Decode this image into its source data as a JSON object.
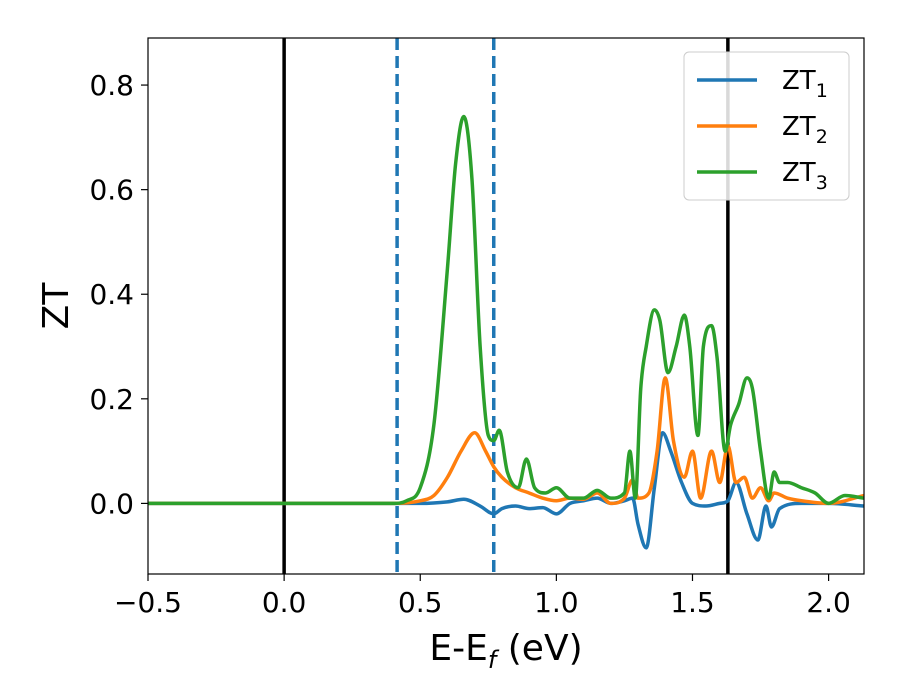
{
  "chart_data": {
    "type": "line",
    "title": "",
    "xlabel_main": "E-E",
    "xlabel_sub": "f",
    "xlabel_unit": " (eV)",
    "ylabel": "ZT",
    "xlim": [
      -0.5,
      2.13
    ],
    "ylim": [
      -0.135,
      0.89
    ],
    "xticks": [
      -0.5,
      0.0,
      0.5,
      1.0,
      1.5,
      2.0
    ],
    "xtick_labels": [
      "−0.5",
      "0.0",
      "0.5",
      "1.0",
      "1.5",
      "2.0"
    ],
    "yticks": [
      0.0,
      0.2,
      0.4,
      0.6,
      0.8
    ],
    "ytick_labels": [
      "0.0",
      "0.2",
      "0.4",
      "0.6",
      "0.8"
    ],
    "grid": false,
    "legend_position": "top-right",
    "vlines": [
      {
        "x": 0.0,
        "style": "solid",
        "color": "#000000"
      },
      {
        "x": 1.63,
        "style": "solid",
        "color": "#000000"
      },
      {
        "x": 0.415,
        "style": "dashed",
        "color": "#1f77b4"
      },
      {
        "x": 0.77,
        "style": "dashed",
        "color": "#1f77b4"
      }
    ],
    "series": [
      {
        "name": "ZT",
        "subscript": "1",
        "color": "#1f77b4",
        "x": [
          -0.5,
          0.4,
          0.5,
          0.6,
          0.66,
          0.72,
          0.77,
          0.8,
          0.85,
          0.9,
          0.95,
          1.0,
          1.05,
          1.1,
          1.15,
          1.2,
          1.25,
          1.28,
          1.3,
          1.33,
          1.36,
          1.39,
          1.42,
          1.46,
          1.5,
          1.55,
          1.6,
          1.63,
          1.66,
          1.7,
          1.74,
          1.77,
          1.79,
          1.82,
          1.9,
          2.0,
          2.13
        ],
        "y": [
          0.0,
          0.0,
          0.0,
          0.003,
          0.008,
          -0.005,
          -0.02,
          -0.01,
          -0.005,
          -0.01,
          -0.008,
          -0.02,
          0.0,
          0.005,
          0.01,
          0.0,
          0.005,
          0.01,
          -0.04,
          -0.085,
          0.03,
          0.135,
          0.1,
          0.04,
          0.0,
          -0.005,
          0.0,
          0.005,
          0.04,
          -0.02,
          -0.07,
          -0.005,
          -0.045,
          -0.01,
          0.0,
          0.0,
          -0.005
        ]
      },
      {
        "name": "ZT",
        "subscript": "2",
        "color": "#ff7f0e",
        "x": [
          -0.5,
          0.4,
          0.5,
          0.55,
          0.6,
          0.65,
          0.7,
          0.74,
          0.77,
          0.8,
          0.85,
          0.9,
          0.95,
          1.0,
          1.05,
          1.1,
          1.15,
          1.2,
          1.25,
          1.28,
          1.3,
          1.34,
          1.37,
          1.4,
          1.43,
          1.47,
          1.5,
          1.53,
          1.57,
          1.6,
          1.63,
          1.66,
          1.69,
          1.72,
          1.75,
          1.78,
          1.8,
          1.85,
          1.9,
          2.0,
          2.13
        ],
        "y": [
          0.0,
          0.0,
          0.005,
          0.015,
          0.05,
          0.1,
          0.135,
          0.1,
          0.07,
          0.05,
          0.03,
          0.02,
          0.01,
          0.005,
          0.01,
          0.008,
          0.02,
          0.0,
          0.01,
          0.045,
          0.01,
          0.02,
          0.1,
          0.24,
          0.12,
          0.05,
          0.1,
          0.01,
          0.1,
          0.04,
          0.11,
          0.04,
          0.05,
          0.01,
          0.03,
          0.005,
          0.02,
          0.01,
          0.005,
          0.0,
          0.015
        ]
      },
      {
        "name": "ZT",
        "subscript": "3",
        "color": "#2ca02c",
        "x": [
          -0.5,
          0.4,
          0.45,
          0.5,
          0.55,
          0.6,
          0.63,
          0.66,
          0.69,
          0.72,
          0.75,
          0.77,
          0.79,
          0.82,
          0.86,
          0.89,
          0.92,
          0.96,
          1.0,
          1.05,
          1.1,
          1.15,
          1.2,
          1.25,
          1.27,
          1.29,
          1.31,
          1.33,
          1.36,
          1.38,
          1.41,
          1.44,
          1.47,
          1.49,
          1.52,
          1.54,
          1.57,
          1.59,
          1.62,
          1.64,
          1.67,
          1.7,
          1.72,
          1.75,
          1.78,
          1.8,
          1.82,
          1.85,
          1.9,
          1.95,
          2.0,
          2.06,
          2.13
        ],
        "y": [
          0.0,
          0.0,
          0.005,
          0.03,
          0.15,
          0.45,
          0.65,
          0.74,
          0.62,
          0.3,
          0.13,
          0.12,
          0.14,
          0.06,
          0.03,
          0.085,
          0.03,
          0.02,
          0.03,
          0.01,
          0.01,
          0.025,
          0.01,
          0.02,
          0.1,
          0.01,
          0.22,
          0.3,
          0.37,
          0.35,
          0.25,
          0.3,
          0.36,
          0.3,
          0.13,
          0.3,
          0.34,
          0.28,
          0.1,
          0.15,
          0.19,
          0.24,
          0.22,
          0.1,
          0.01,
          0.06,
          0.04,
          0.04,
          0.03,
          0.02,
          0.0,
          0.015,
          0.01
        ]
      }
    ]
  }
}
